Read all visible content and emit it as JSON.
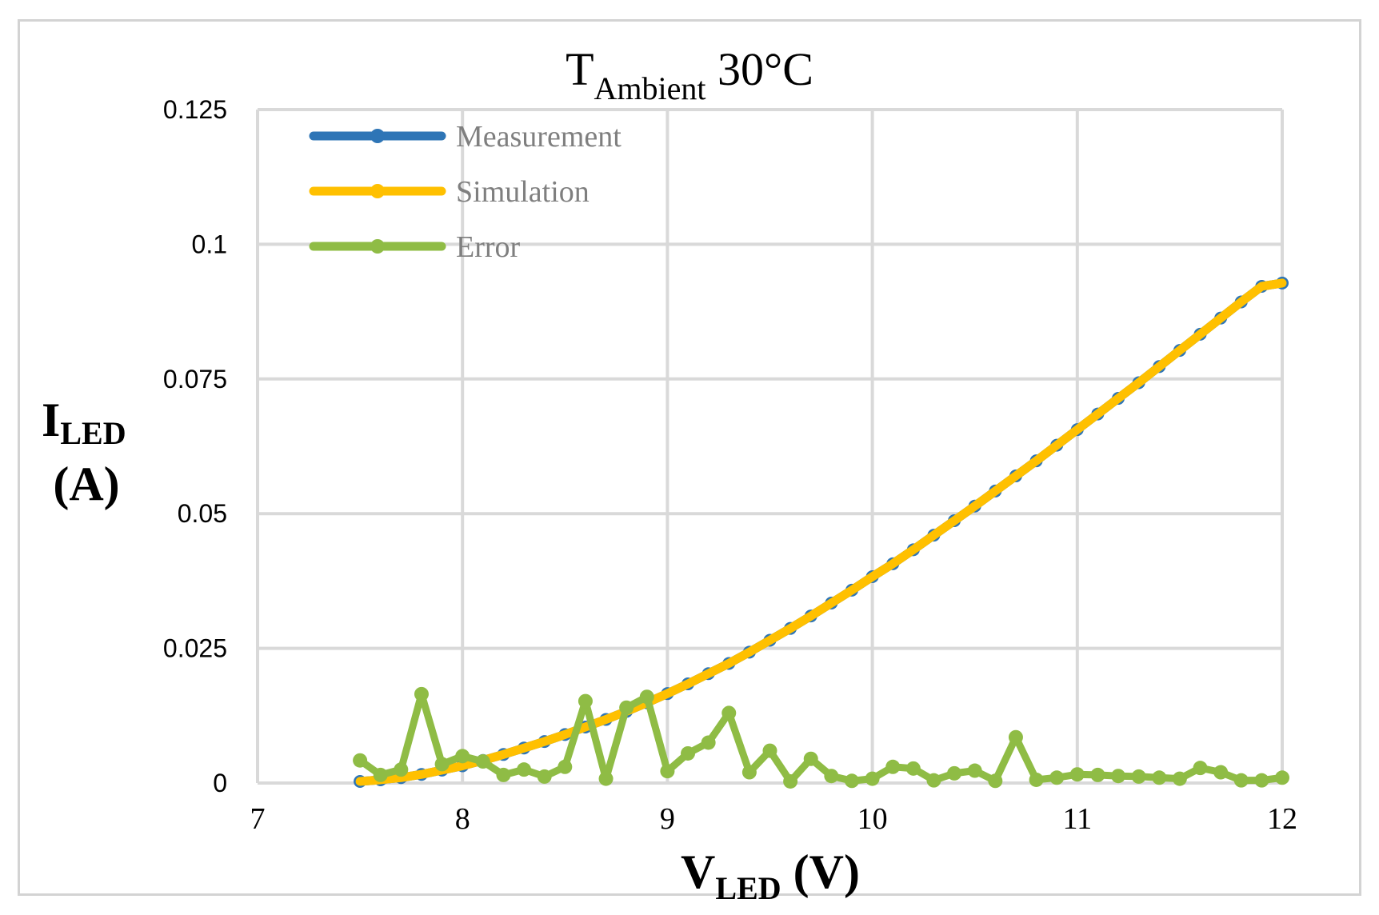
{
  "chart_data": {
    "type": "line",
    "title": {
      "main": "T",
      "sub": "Ambient",
      "suffix": " 30°C"
    },
    "xlabel": {
      "main": "V",
      "sub": "LED",
      "suffix": " (V)"
    },
    "ylabel": {
      "main": "I",
      "sub": "LED",
      "line2": "(A)"
    },
    "xlim": [
      7,
      12
    ],
    "ylim": [
      0,
      0.125
    ],
    "x_ticks": [
      7,
      8,
      9,
      10,
      11,
      12
    ],
    "x_tick_labels": [
      "7",
      "8",
      "9",
      "10",
      "11",
      "12"
    ],
    "y_ticks": [
      0,
      0.025,
      0.05,
      0.075,
      0.1,
      0.125
    ],
    "y_tick_labels": [
      "0",
      "0.025",
      "0.05",
      "0.075",
      "0.1",
      "0.125"
    ],
    "grid": true,
    "legend_position": "top-left",
    "x": [
      7.5,
      7.6,
      7.7,
      7.8,
      7.9,
      8.0,
      8.1,
      8.2,
      8.3,
      8.4,
      8.5,
      8.6,
      8.7,
      8.8,
      8.9,
      9.0,
      9.1,
      9.2,
      9.3,
      9.4,
      9.5,
      9.6,
      9.7,
      9.8,
      9.9,
      10.0,
      10.1,
      10.2,
      10.3,
      10.4,
      10.5,
      10.6,
      10.7,
      10.8,
      10.9,
      11.0,
      11.1,
      11.2,
      11.3,
      11.4,
      11.5,
      11.6,
      11.7,
      11.8,
      11.9,
      12.0
    ],
    "series": [
      {
        "name": "Measurement",
        "color": "#2e75b6",
        "values": [
          0.0003,
          0.0006,
          0.001,
          0.0016,
          0.0024,
          0.0032,
          0.0042,
          0.0053,
          0.0065,
          0.0077,
          0.009,
          0.0104,
          0.0118,
          0.0133,
          0.0149,
          0.0166,
          0.0184,
          0.0203,
          0.0222,
          0.0243,
          0.0265,
          0.0287,
          0.031,
          0.0334,
          0.0358,
          0.0383,
          0.0407,
          0.0433,
          0.046,
          0.0487,
          0.0514,
          0.0542,
          0.057,
          0.0598,
          0.0627,
          0.0656,
          0.0685,
          0.0714,
          0.0743,
          0.0773,
          0.0803,
          0.0833,
          0.0863,
          0.0893,
          0.0922,
          0.0928
        ]
      },
      {
        "name": "Simulation",
        "color": "#ffc000",
        "values": [
          0.0003,
          0.0006,
          0.001,
          0.0016,
          0.0024,
          0.0032,
          0.0042,
          0.0053,
          0.0065,
          0.0077,
          0.009,
          0.0104,
          0.0118,
          0.0133,
          0.0149,
          0.0166,
          0.0184,
          0.0203,
          0.0222,
          0.0243,
          0.0265,
          0.0287,
          0.031,
          0.0334,
          0.0358,
          0.0383,
          0.0407,
          0.0433,
          0.046,
          0.0487,
          0.0514,
          0.0542,
          0.057,
          0.0598,
          0.0627,
          0.0656,
          0.0685,
          0.0714,
          0.0743,
          0.0773,
          0.0803,
          0.0833,
          0.0863,
          0.0893,
          0.0922,
          0.0928
        ]
      },
      {
        "name": "Error",
        "color": "#8fbc45",
        "values": [
          0.0042,
          0.0015,
          0.0025,
          0.0165,
          0.0035,
          0.005,
          0.004,
          0.0015,
          0.0025,
          0.0012,
          0.003,
          0.0152,
          0.0008,
          0.014,
          0.016,
          0.0022,
          0.0055,
          0.0075,
          0.013,
          0.002,
          0.006,
          0.0003,
          0.0045,
          0.0013,
          0.0004,
          0.0008,
          0.003,
          0.0027,
          0.0005,
          0.0018,
          0.0023,
          0.0004,
          0.0085,
          0.0006,
          0.001,
          0.0016,
          0.0015,
          0.0013,
          0.0012,
          0.001,
          0.0008,
          0.0028,
          0.002,
          0.0005,
          0.0005,
          0.001
        ]
      }
    ]
  }
}
